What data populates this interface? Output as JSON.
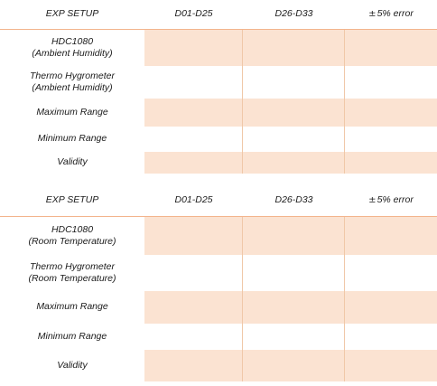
{
  "tables": [
    {
      "headers": [
        "EXP SETUP",
        "D01-D25",
        "D26-D33",
        "5% error"
      ],
      "header_pm_symbol": "±",
      "rows": [
        {
          "label": "HDC1080\n(Ambient Humidity)"
        },
        {
          "label": "Thermo Hygrometer\n(Ambient Humidity)"
        },
        {
          "label": "Maximum Range"
        },
        {
          "label": "Minimum Range"
        },
        {
          "label": "Validity"
        }
      ]
    },
    {
      "headers": [
        "EXP SETUP",
        "D01-D25",
        "D26-D33",
        "5% error"
      ],
      "header_pm_symbol": "±",
      "rows": [
        {
          "label": "HDC1080\n(Room Temperature)"
        },
        {
          "label": "Thermo Hygrometer\n(Room Temperature)"
        },
        {
          "label": "Maximum Range"
        },
        {
          "label": "Minimum Range"
        },
        {
          "label": "Validity"
        }
      ]
    }
  ],
  "colors": {
    "header_line": "#f3b48c",
    "shaded_cell": "#fbe3d2",
    "cell_border": "#f0c8a8"
  }
}
